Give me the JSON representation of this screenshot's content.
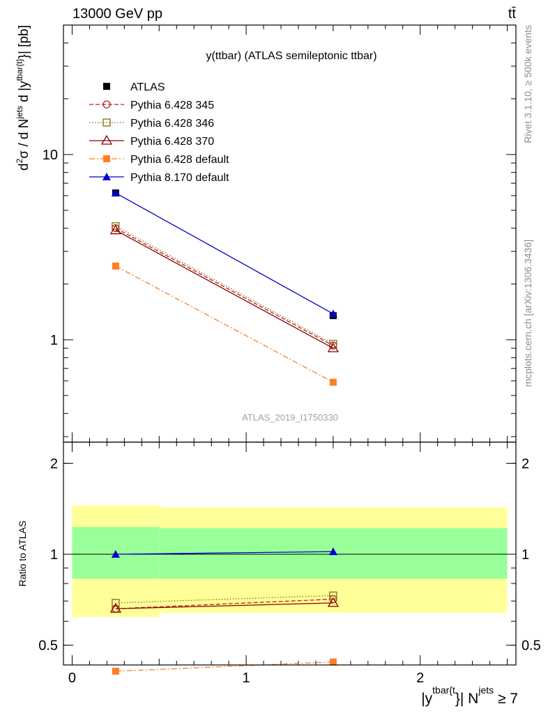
{
  "header": {
    "left": "13000 GeV pp",
    "right": "tt̄"
  },
  "side": {
    "rivet": "Rivet 3.1.10, ≥ 500k events",
    "mcplots": "mcplots.cern.ch [arXiv:1306.3436]"
  },
  "chart_data": [
    {
      "type": "line",
      "title": "y(ttbar) (ATLAS semileptonic ttbar)",
      "watermark": "ATLAS_2019_I1750330",
      "ylabel_parts": [
        "d",
        "2",
        "σ / d N",
        "jets",
        " d |y",
        "tbar{t}",
        "}| [pb]"
      ],
      "yscale": "log",
      "ylim": [
        0.28,
        50
      ],
      "xlim": [
        -0.05,
        2.55
      ],
      "yticks": [
        {
          "v": 1,
          "label": "1"
        },
        {
          "v": 10,
          "label": "10"
        }
      ],
      "legend_position": "top-left",
      "x": [
        0.25,
        1.5
      ],
      "series": [
        {
          "name": "ATLAS",
          "color": "#000000",
          "marker": "square-filled",
          "dash": "none",
          "values": [
            6.2,
            1.35
          ]
        },
        {
          "name": "Pythia 6.428 345",
          "color": "#b22222",
          "marker": "circle-open",
          "dash": "6,3",
          "values": [
            4.0,
            0.93
          ]
        },
        {
          "name": "Pythia 6.428 346",
          "color": "#8b6914",
          "marker": "square-open",
          "dash": "1.5,2.5",
          "values": [
            4.1,
            0.95
          ]
        },
        {
          "name": "Pythia 6.428 370",
          "color": "#8b0000",
          "marker": "triangle-open",
          "dash": "none",
          "values": [
            3.9,
            0.9
          ]
        },
        {
          "name": "Pythia 6.428 default",
          "color": "#ff7f24",
          "marker": "square-filled",
          "dash": "8,3,2,3",
          "values": [
            2.5,
            0.59
          ]
        },
        {
          "name": "Pythia 8.170 default",
          "color": "#0000cd",
          "marker": "triangle-filled",
          "dash": "none",
          "values": [
            6.2,
            1.38
          ]
        }
      ]
    },
    {
      "type": "line",
      "ylabel": "Ratio to ATLAS",
      "xlabel_parts": [
        "|y",
        "tbar{t",
        "}| N",
        "jets",
        " ≥ 7"
      ],
      "yscale": "log",
      "ylim": [
        0.43,
        2.35
      ],
      "xlim": [
        -0.05,
        2.55
      ],
      "yticks": [
        {
          "v": 0.5,
          "label": "0.5"
        },
        {
          "v": 1,
          "label": "1"
        },
        {
          "v": 2,
          "label": "2"
        }
      ],
      "xticks": [
        {
          "v": 0,
          "label": "0"
        },
        {
          "v": 1,
          "label": "1"
        },
        {
          "v": 2,
          "label": "2"
        }
      ],
      "bands": [
        {
          "x0": 0,
          "x1": 0.5,
          "yellow": [
            0.62,
            1.45
          ],
          "green": [
            0.83,
            1.23
          ]
        },
        {
          "x0": 0.5,
          "x1": 2.5,
          "yellow": [
            0.64,
            1.43
          ],
          "green": [
            0.83,
            1.22
          ]
        }
      ],
      "x": [
        0.25,
        1.5
      ],
      "series": [
        {
          "name": "Pythia 6.428 345",
          "color": "#b22222",
          "marker": "circle-open",
          "dash": "6,3",
          "values": [
            0.66,
            0.71
          ]
        },
        {
          "name": "Pythia 6.428 346",
          "color": "#8b6914",
          "marker": "square-open",
          "dash": "1.5,2.5",
          "values": [
            0.69,
            0.73
          ]
        },
        {
          "name": "Pythia 6.428 370",
          "color": "#8b0000",
          "marker": "triangle-open",
          "dash": "none",
          "values": [
            0.66,
            0.69
          ]
        },
        {
          "name": "Pythia 6.428 default",
          "color": "#ff7f24",
          "marker": "square-filled",
          "dash": "8,3,2,3",
          "values": [
            0.41,
            0.44
          ]
        },
        {
          "name": "Pythia 8.170 default",
          "color": "#0000cd",
          "marker": "triangle-filled",
          "dash": "none",
          "values": [
            1.0,
            1.02
          ]
        }
      ]
    }
  ]
}
